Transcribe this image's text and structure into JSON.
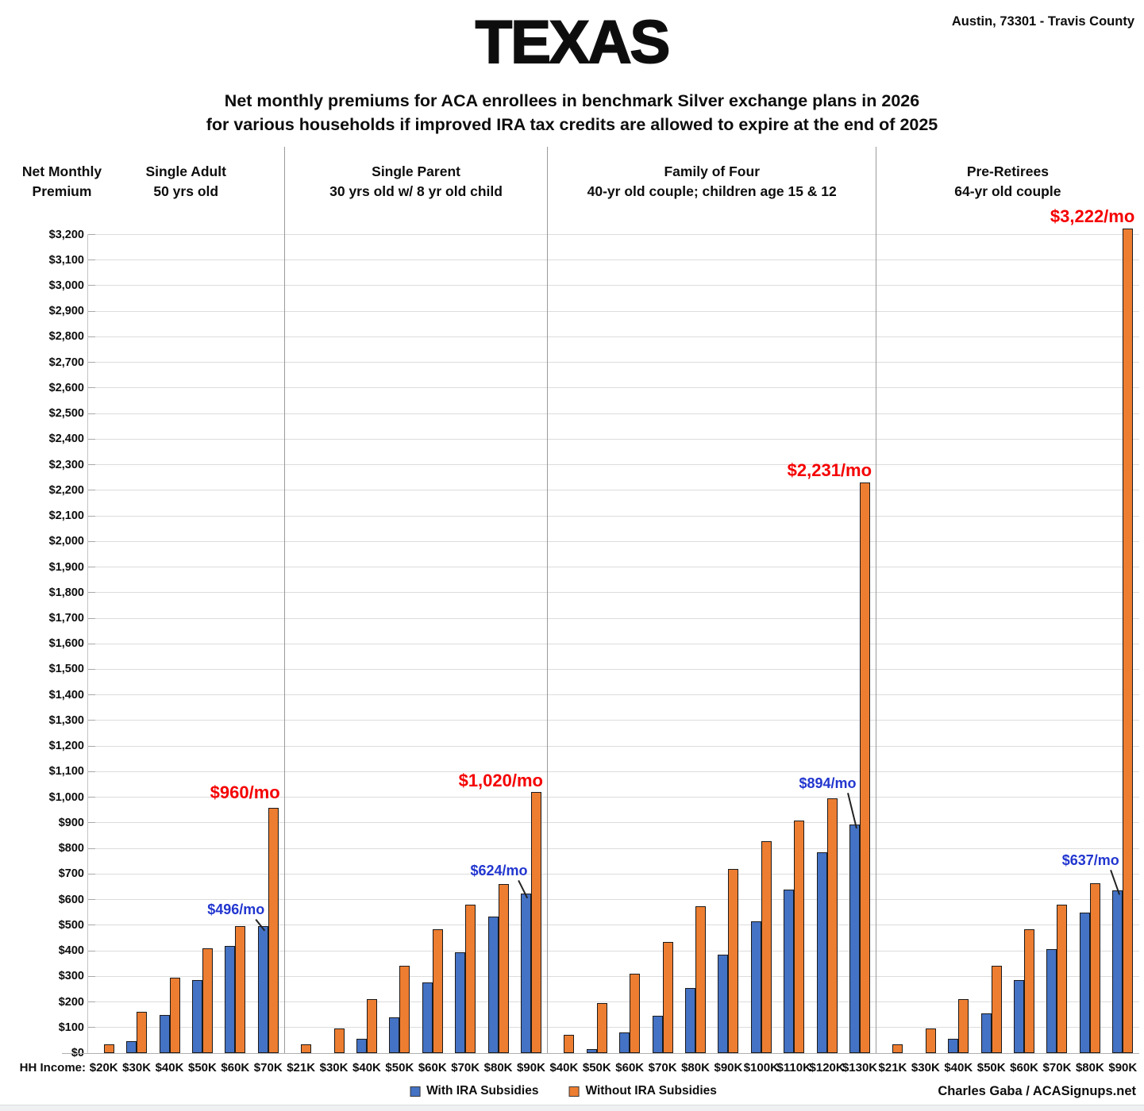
{
  "header": {
    "title": "TEXAS",
    "location": "Austin, 73301 - Travis County",
    "subtitle1": "Net monthly premiums for ACA enrollees in benchmark Silver exchange plans in 2026",
    "subtitle2": "for various households if improved IRA tax credits are allowed to expire at the end of 2025"
  },
  "footer": {
    "credit": "Charles Gaba / ACASignups.net"
  },
  "chart_data": {
    "type": "bar",
    "ylim": [
      0,
      3200
    ],
    "ytick_step": 100,
    "ylabel_line1": "Net Monthly",
    "ylabel_line2": "Premium",
    "x_axis_prefix": "HH Income:",
    "grid": true,
    "legend_position": "bottom",
    "series_names": [
      "With IRA Subsidies",
      "Without IRA Subsidies"
    ],
    "colors": {
      "with_ira": "#4472C4",
      "without_ira": "#ED7D31",
      "annotation_red": "#F40000",
      "annotation_blue": "#2236CF",
      "gridline": "#DCDCDC",
      "separator": "#9A9A9A"
    },
    "panels": [
      {
        "title_line1": "Single Adult",
        "title_line2": "50 yrs old",
        "categories": [
          "$20K",
          "$30K",
          "$40K",
          "$50K",
          "$60K",
          "$70K"
        ],
        "series": [
          {
            "name": "With IRA Subsidies",
            "values": [
              0,
              45,
              150,
              285,
              420,
              496
            ]
          },
          {
            "name": "Without IRA Subsidies",
            "values": [
              35,
              160,
              295,
              410,
              495,
              960
            ]
          }
        ],
        "callouts": [
          {
            "series": 1,
            "cat": 5,
            "text": "$960/mo",
            "color": "red",
            "gap": 6
          },
          {
            "series": 0,
            "cat": 5,
            "text": "$496/mo",
            "color": "blue",
            "gap": 10
          }
        ]
      },
      {
        "title_line1": "Single Parent",
        "title_line2": "30 yrs old w/ 8 yr old child",
        "categories": [
          "$21K",
          "$30K",
          "$40K",
          "$50K",
          "$60K",
          "$70K",
          "$80K",
          "$90K"
        ],
        "series": [
          {
            "name": "With IRA Subsidies",
            "values": [
              0,
              0,
              55,
              140,
              275,
              395,
              535,
              624
            ]
          },
          {
            "name": "Without IRA Subsidies",
            "values": [
              35,
              95,
              210,
              340,
              485,
              580,
              660,
              1020
            ]
          }
        ],
        "callouts": [
          {
            "series": 1,
            "cat": 7,
            "text": "$1,020/mo",
            "color": "red",
            "gap": 1
          },
          {
            "series": 0,
            "cat": 7,
            "text": "$624/mo",
            "color": "blue",
            "gap": 18
          }
        ]
      },
      {
        "title_line1": "Family of Four",
        "title_line2": "40-yr old couple; children age 15 & 12",
        "categories": [
          "$40K",
          "$50K",
          "$60K",
          "$70K",
          "$80K",
          "$90K",
          "$100K",
          "$110K",
          "$120K",
          "$130K"
        ],
        "series": [
          {
            "name": "With IRA Subsidies",
            "values": [
              0,
              15,
              80,
              145,
              255,
              385,
              515,
              640,
              785,
              894
            ]
          },
          {
            "name": "Without IRA Subsidies",
            "values": [
              70,
              195,
              310,
              435,
              575,
              720,
              828,
              910,
              995,
              2231
            ]
          }
        ],
        "callouts": [
          {
            "series": 1,
            "cat": 9,
            "text": "$2,231/mo",
            "color": "red",
            "gap": 2
          },
          {
            "series": 0,
            "cat": 9,
            "text": "$894/mo",
            "color": "blue",
            "gap": 41
          }
        ]
      },
      {
        "title_line1": "Pre-Retirees",
        "title_line2": "64-yr old couple",
        "categories": [
          "$21K",
          "$30K",
          "$40K",
          "$50K",
          "$60K",
          "$70K",
          "$80K",
          "$90K"
        ],
        "series": [
          {
            "name": "With IRA Subsidies",
            "values": [
              0,
              0,
              55,
              155,
              285,
              405,
              550,
              637
            ]
          },
          {
            "name": "Without IRA Subsidies",
            "values": [
              35,
              95,
              210,
              340,
              485,
              580,
              665,
              3222
            ]
          }
        ],
        "callouts": [
          {
            "series": 1,
            "cat": 7,
            "text": "$3,222/mo",
            "color": "red",
            "gap": 2
          },
          {
            "series": 0,
            "cat": 7,
            "text": "$637/mo",
            "color": "blue",
            "gap": 27
          }
        ]
      }
    ]
  }
}
